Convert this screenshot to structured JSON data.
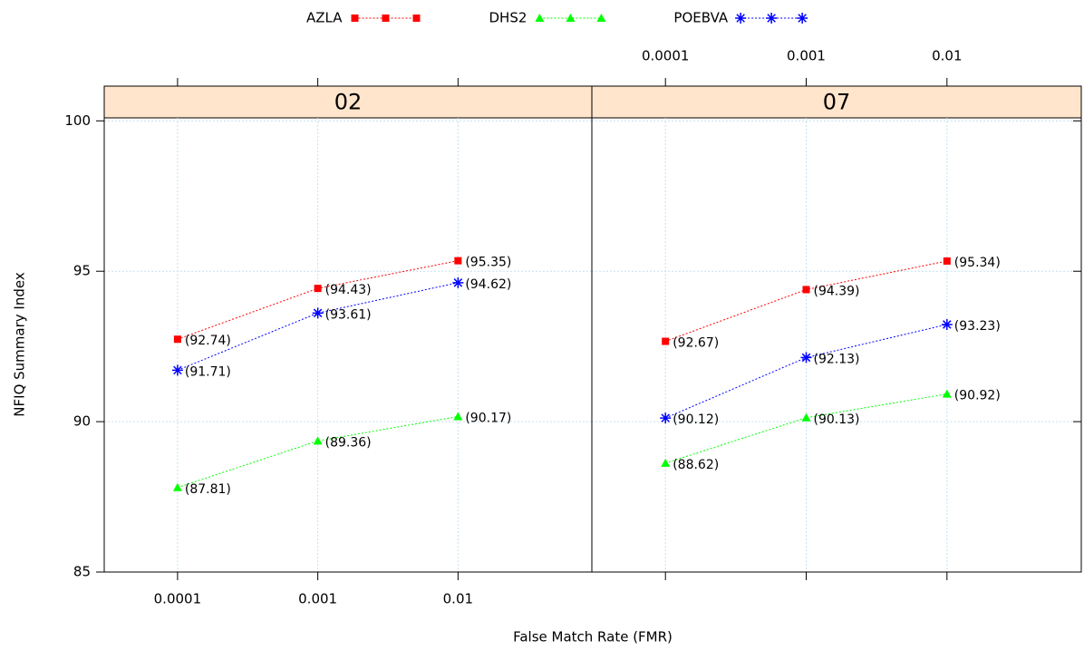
{
  "chart_data": {
    "type": "line",
    "xlabel": "False Match Rate (FMR)",
    "ylabel": "NFIQ Summary Index",
    "log_x": true,
    "grid": true,
    "legend": "top",
    "x": [
      0.0001,
      0.001,
      0.01
    ],
    "xlim": [
      3e-05,
      0.09
    ],
    "xticks": [
      0.0001,
      0.001,
      0.01
    ],
    "ylim": [
      85,
      100.1
    ],
    "yticks": [
      85,
      90,
      95,
      100
    ],
    "series": [
      {
        "name": "AZLA",
        "color": "#ff0000",
        "marker": "square"
      },
      {
        "name": "DHS2",
        "color": "#00ff00",
        "marker": "triangle"
      },
      {
        "name": "POEBVA",
        "color": "#0000ff",
        "marker": "asterisk"
      }
    ],
    "panels": [
      {
        "title": "02",
        "values": [
          [
            92.74,
            94.43,
            95.35
          ],
          [
            87.81,
            89.36,
            90.17
          ],
          [
            91.71,
            93.61,
            94.62
          ]
        ],
        "value_labels": [
          [
            "(92.74)",
            "(94.43)",
            "(95.35)"
          ],
          [
            "(87.81)",
            "(89.36)",
            "(90.17)"
          ],
          [
            "(91.71)",
            "(93.61)",
            "(94.62)"
          ]
        ]
      },
      {
        "title": "07",
        "values": [
          [
            92.67,
            94.39,
            95.34
          ],
          [
            88.62,
            90.13,
            90.92
          ],
          [
            90.12,
            92.13,
            93.23
          ]
        ],
        "value_labels": [
          [
            "(92.67)",
            "(94.39)",
            "(95.34)"
          ],
          [
            "(88.62)",
            "(90.13)",
            "(90.92)"
          ],
          [
            "(90.12)",
            "(92.13)",
            "(93.23)"
          ]
        ]
      }
    ]
  }
}
